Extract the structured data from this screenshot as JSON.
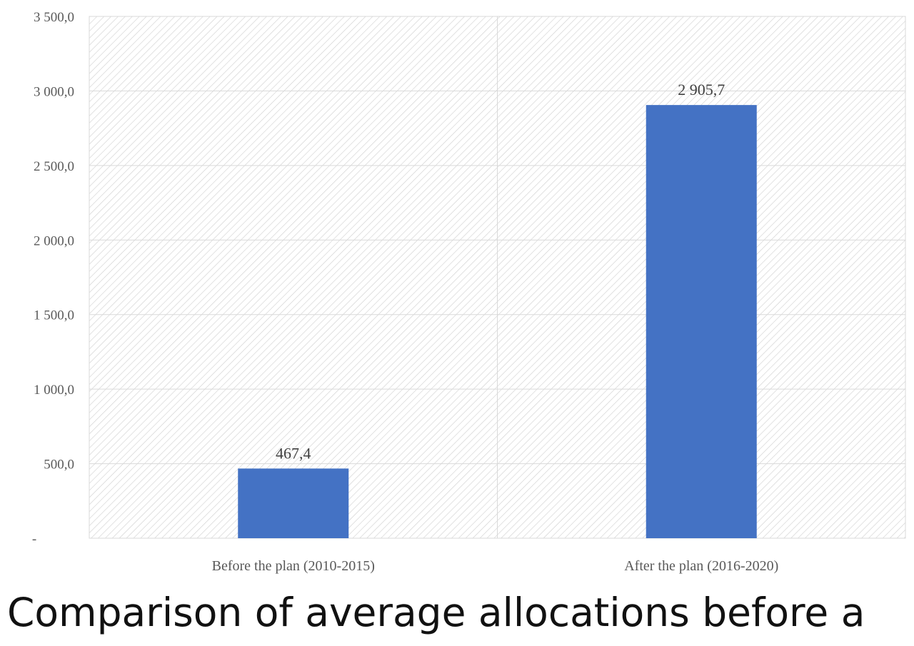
{
  "chart_data": {
    "type": "bar",
    "categories": [
      "Before the plan (2010-2015)",
      "After the plan (2016-2020)"
    ],
    "values": [
      467.4,
      2905.7
    ],
    "value_labels": [
      "467,4",
      "2 905,7"
    ],
    "ylim": [
      0,
      3500
    ],
    "yticks": [
      0,
      500,
      1000,
      1500,
      2000,
      2500,
      3000,
      3500
    ],
    "ytick_labels": [
      "-",
      "500,0",
      "1 000,0",
      "1 500,0",
      "2 000,0",
      "2 500,0",
      "3 000,0",
      "3 500,0"
    ],
    "grid": true,
    "legend": "none",
    "bar_color": "#4472C4",
    "background": "diagonal hatch"
  },
  "caption": "Comparison of average allocations before a"
}
